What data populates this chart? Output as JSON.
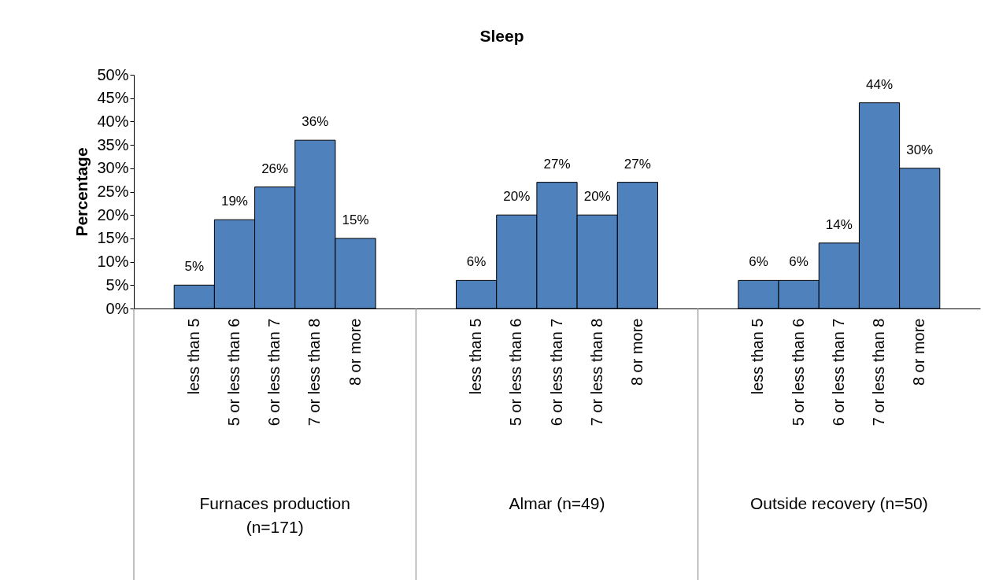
{
  "chart_data": {
    "type": "bar",
    "title": "Sleep",
    "ylabel": "Percentage",
    "categories": [
      "less than 5",
      "5 or less than 6",
      "6 or less than 7",
      "7 or less than 8",
      "8 or more",
      "less than 5",
      "5 or less than 6",
      "6 or less than 7",
      "7 or less than 8",
      "8 or more",
      "less than 5",
      "5 or less than 6",
      "6 or less than 7",
      "7 or less than 8",
      "8 or more"
    ],
    "values": [
      5,
      19,
      26,
      36,
      15,
      6,
      20,
      27,
      20,
      27,
      6,
      6,
      14,
      44,
      30
    ],
    "value_labels": [
      "5%",
      "19%",
      "26%",
      "36%",
      "15%",
      "6%",
      "20%",
      "27%",
      "20%",
      "27%",
      "6%",
      "6%",
      "14%",
      "44%",
      "30%"
    ],
    "color": "#4f81bd",
    "ylim": [
      0,
      50
    ],
    "yticks": [
      {
        "value": 0,
        "label": "0%"
      },
      {
        "value": 5,
        "label": "5%"
      },
      {
        "value": 10,
        "label": "10%"
      },
      {
        "value": 15,
        "label": "15%"
      },
      {
        "value": 20,
        "label": "20%"
      },
      {
        "value": 25,
        "label": "25%"
      },
      {
        "value": 30,
        "label": "30%"
      },
      {
        "value": 35,
        "label": "35%"
      },
      {
        "value": 40,
        "label": "40%"
      },
      {
        "value": 45,
        "label": "45%"
      },
      {
        "value": 50,
        "label": "50%"
      }
    ],
    "annotations": [
      "Furnaces production (n=171)",
      "Almar (n=49)",
      "Outside recovery (n=50)"
    ],
    "grid": false
  }
}
